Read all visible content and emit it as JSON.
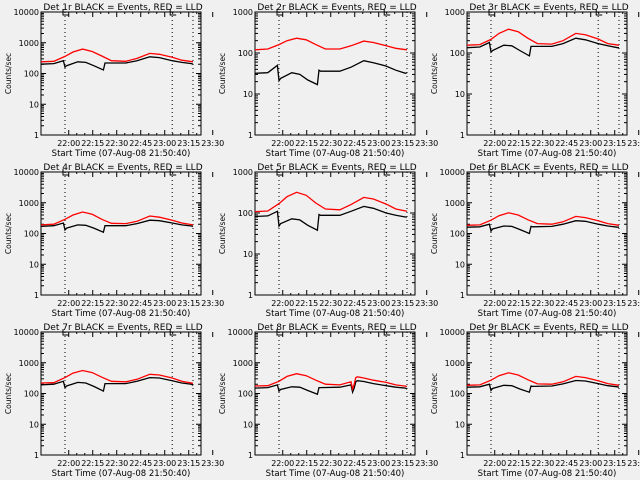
{
  "chart_data": [
    {
      "type": "line",
      "title": "Det 1r BLACK = Events, RED = LLD",
      "xlabel": "Start Time (07-Aug-08 21:50:40)",
      "ylabel": "Counts/sec",
      "yscale": "log",
      "ylim": [
        1,
        10000
      ],
      "ytick_labels": [
        "1",
        "10",
        "100",
        "1000",
        "10000"
      ],
      "xtick_labels": [
        "22:00",
        "22:15",
        "22:30",
        "22:45",
        "23:00",
        "23:15",
        "23:30"
      ],
      "xlim_minutes": [
        -8,
        92
      ],
      "vlines_minutes": [
        7,
        74,
        87
      ],
      "series": [
        {
          "name": "Events",
          "color": "#000000",
          "x": [
            -8,
            0,
            6,
            7,
            8,
            15,
            20,
            25,
            31,
            32,
            33,
            45,
            52,
            60,
            66,
            74,
            80,
            86,
            87
          ],
          "values": [
            200,
            210,
            260,
            160,
            180,
            240,
            230,
            180,
            130,
            220,
            220,
            220,
            260,
            350,
            330,
            260,
            230,
            210,
            200
          ]
        },
        {
          "name": "LLD",
          "color": "#ff0000",
          "x": [
            -8,
            0,
            7,
            12,
            18,
            24,
            30,
            36,
            45,
            52,
            60,
            66,
            74,
            80,
            87
          ],
          "values": [
            240,
            250,
            360,
            500,
            620,
            520,
            370,
            260,
            250,
            310,
            450,
            420,
            340,
            270,
            240
          ]
        }
      ]
    },
    {
      "type": "line",
      "title": "Det 2r BLACK = Events, RED = LLD",
      "xlabel": "Start Time (07-Aug-08 21:50:40)",
      "ylabel": "Counts/sec",
      "yscale": "log",
      "ylim": [
        1,
        1000
      ],
      "ytick_labels": [
        "1",
        "10",
        "100",
        "1000"
      ],
      "xtick_labels": [
        "22:00",
        "22:15",
        "22:30",
        "22:45",
        "23:00",
        "23:15",
        "23:30"
      ],
      "xlim_minutes": [
        -8,
        92
      ],
      "vlines_minutes": [
        7,
        74,
        87
      ],
      "series": [
        {
          "name": "Events",
          "color": "#000000",
          "x": [
            -8,
            0,
            6,
            7,
            8,
            15,
            20,
            25,
            31,
            32,
            33,
            45,
            52,
            60,
            66,
            74,
            80,
            86,
            87
          ],
          "values": [
            32,
            33,
            50,
            21,
            24,
            33,
            30,
            22,
            17,
            38,
            36,
            36,
            45,
            65,
            58,
            48,
            38,
            32,
            33
          ]
        },
        {
          "name": "LLD",
          "color": "#ff0000",
          "x": [
            -8,
            0,
            7,
            12,
            18,
            24,
            30,
            36,
            45,
            52,
            60,
            66,
            74,
            80,
            87
          ],
          "values": [
            120,
            125,
            160,
            200,
            230,
            210,
            160,
            125,
            125,
            150,
            195,
            180,
            150,
            130,
            120
          ]
        }
      ]
    },
    {
      "type": "line",
      "title": "Det 3r BLACK = Events, RED = LLD",
      "xlabel": "Start Time (07-Aug-08 21:50:40)",
      "ylabel": "Counts/sec",
      "yscale": "log",
      "ylim": [
        1,
        1000
      ],
      "ytick_labels": [
        "1",
        "10",
        "100",
        "1000"
      ],
      "xtick_labels": [
        "22:00",
        "22:15",
        "22:30",
        "22:45",
        "23:00",
        "23:15",
        "23:30"
      ],
      "xlim_minutes": [
        -8,
        92
      ],
      "vlines_minutes": [
        7,
        74,
        87
      ],
      "series": [
        {
          "name": "Events",
          "color": "#000000",
          "x": [
            -8,
            0,
            6,
            7,
            8,
            15,
            20,
            25,
            31,
            32,
            33,
            45,
            52,
            60,
            66,
            74,
            80,
            86,
            87
          ],
          "values": [
            135,
            140,
            180,
            105,
            115,
            155,
            150,
            115,
            85,
            145,
            145,
            145,
            170,
            230,
            210,
            170,
            150,
            135,
            135
          ]
        },
        {
          "name": "LLD",
          "color": "#ff0000",
          "x": [
            -8,
            0,
            7,
            12,
            18,
            24,
            30,
            36,
            45,
            52,
            60,
            66,
            74,
            80,
            87
          ],
          "values": [
            155,
            160,
            215,
            300,
            380,
            330,
            230,
            170,
            165,
            200,
            300,
            280,
            220,
            170,
            155
          ]
        }
      ]
    },
    {
      "type": "line",
      "title": "Det 4r BLACK = Events, RED = LLD",
      "xlabel": "Start Time (07-Aug-08 21:50:40)",
      "ylabel": "Counts/sec",
      "yscale": "log",
      "ylim": [
        1,
        10000
      ],
      "ytick_labels": [
        "1",
        "10",
        "100",
        "1000",
        "10000"
      ],
      "xtick_labels": [
        "22:00",
        "22:15",
        "22:30",
        "22:45",
        "23:00",
        "23:15",
        "23:30"
      ],
      "xlim_minutes": [
        -8,
        92
      ],
      "vlines_minutes": [
        7,
        74,
        87
      ],
      "series": [
        {
          "name": "Events",
          "color": "#000000",
          "x": [
            -8,
            0,
            6,
            7,
            8,
            15,
            20,
            25,
            31,
            32,
            33,
            45,
            52,
            60,
            66,
            74,
            80,
            86,
            87
          ],
          "values": [
            170,
            180,
            220,
            130,
            150,
            190,
            185,
            150,
            110,
            180,
            180,
            180,
            210,
            270,
            260,
            220,
            190,
            175,
            170
          ]
        },
        {
          "name": "LLD",
          "color": "#ff0000",
          "x": [
            -8,
            0,
            7,
            12,
            18,
            24,
            30,
            36,
            45,
            52,
            60,
            66,
            74,
            80,
            87
          ],
          "values": [
            190,
            200,
            290,
            400,
            500,
            420,
            290,
            215,
            210,
            250,
            370,
            340,
            270,
            220,
            190
          ]
        }
      ]
    },
    {
      "type": "line",
      "title": "Det 5r BLACK = Events, RED = LLD",
      "xlabel": "Start Time (07-Aug-08 21:50:40)",
      "ylabel": "Counts/sec",
      "yscale": "log",
      "ylim": [
        1,
        1000
      ],
      "ytick_labels": [
        "1",
        "10",
        "100",
        "1000"
      ],
      "xtick_labels": [
        "22:00",
        "22:15",
        "22:30",
        "22:45",
        "23:00",
        "23:15",
        "23:30"
      ],
      "xlim_minutes": [
        -8,
        92
      ],
      "vlines_minutes": [
        7,
        74,
        87
      ],
      "series": [
        {
          "name": "Events",
          "color": "#000000",
          "x": [
            -8,
            0,
            6,
            7,
            8,
            15,
            20,
            25,
            31,
            32,
            33,
            45,
            52,
            60,
            66,
            74,
            80,
            86,
            87
          ],
          "values": [
            82,
            85,
            110,
            48,
            55,
            72,
            68,
            50,
            38,
            92,
            88,
            88,
            110,
            145,
            130,
            100,
            88,
            80,
            80
          ]
        },
        {
          "name": "LLD",
          "color": "#ff0000",
          "x": [
            -8,
            0,
            7,
            12,
            18,
            24,
            30,
            36,
            45,
            52,
            60,
            66,
            74,
            80,
            87
          ],
          "values": [
            108,
            112,
            170,
            250,
            320,
            270,
            175,
            125,
            120,
            160,
            240,
            220,
            165,
            125,
            110
          ]
        }
      ]
    },
    {
      "type": "line",
      "title": "Det 6r BLACK = Events, RED = LLD",
      "xlabel": "Start Time (07-Aug-08 21:50:40)",
      "ylabel": "Counts/sec",
      "yscale": "log",
      "ylim": [
        1,
        10000
      ],
      "ytick_labels": [
        "1",
        "10",
        "100",
        "1000",
        "10000"
      ],
      "xtick_labels": [
        "22:00",
        "22:15",
        "22:30",
        "22:45",
        "23:00",
        "23:15",
        "23:30"
      ],
      "xlim_minutes": [
        -8,
        92
      ],
      "vlines_minutes": [
        7,
        74,
        87
      ],
      "series": [
        {
          "name": "Events",
          "color": "#000000",
          "x": [
            -8,
            0,
            6,
            7,
            8,
            15,
            20,
            25,
            31,
            32,
            33,
            45,
            52,
            60,
            66,
            74,
            80,
            86,
            87
          ],
          "values": [
            160,
            165,
            200,
            120,
            140,
            175,
            170,
            135,
            100,
            170,
            165,
            170,
            200,
            260,
            250,
            200,
            175,
            160,
            160
          ]
        },
        {
          "name": "LLD",
          "color": "#ff0000",
          "x": [
            -8,
            0,
            7,
            12,
            18,
            24,
            30,
            36,
            45,
            52,
            60,
            66,
            74,
            80,
            87
          ],
          "values": [
            185,
            190,
            270,
            380,
            470,
            400,
            280,
            210,
            200,
            240,
            360,
            330,
            260,
            210,
            185
          ]
        }
      ]
    },
    {
      "type": "line",
      "title": "Det 7r BLACK = Events, RED = LLD",
      "xlabel": "Start Time (07-Aug-08 21:50:40)",
      "ylabel": "Counts/sec",
      "yscale": "log",
      "ylim": [
        1,
        10000
      ],
      "ytick_labels": [
        "1",
        "10",
        "100",
        "1000",
        "10000"
      ],
      "xtick_labels": [
        "22:00",
        "22:15",
        "22:30",
        "22:45",
        "23:00",
        "23:15",
        "23:30"
      ],
      "xlim_minutes": [
        -8,
        92
      ],
      "vlines_minutes": [
        7,
        74,
        87
      ],
      "series": [
        {
          "name": "Events",
          "color": "#000000",
          "x": [
            -8,
            0,
            6,
            7,
            8,
            15,
            20,
            25,
            31,
            32,
            33,
            45,
            52,
            60,
            66,
            74,
            80,
            86,
            87
          ],
          "values": [
            190,
            200,
            250,
            155,
            175,
            230,
            220,
            170,
            120,
            210,
            210,
            210,
            250,
            330,
            320,
            260,
            220,
            200,
            185
          ]
        },
        {
          "name": "LLD",
          "color": "#ff0000",
          "x": [
            -8,
            0,
            7,
            12,
            18,
            24,
            30,
            36,
            45,
            52,
            60,
            66,
            74,
            80,
            87
          ],
          "values": [
            220,
            225,
            330,
            460,
            560,
            480,
            340,
            250,
            240,
            290,
            420,
            400,
            320,
            250,
            215
          ]
        }
      ]
    },
    {
      "type": "line",
      "title": "Det 8r BLACK = Events, RED = LLD",
      "xlabel": "Start Time (07-Aug-08 21:50:40)",
      "ylabel": "Counts/sec",
      "yscale": "log",
      "ylim": [
        1,
        10000
      ],
      "ytick_labels": [
        "1",
        "10",
        "100",
        "1000",
        "10000"
      ],
      "xtick_labels": [
        "22:00",
        "22:15",
        "22:30",
        "22:45",
        "23:00",
        "23:15",
        "23:30"
      ],
      "xlim_minutes": [
        -8,
        92
      ],
      "vlines_minutes": [
        7,
        74,
        87
      ],
      "series": [
        {
          "name": "Events",
          "color": "#000000",
          "x": [
            -8,
            0,
            6,
            7,
            8,
            15,
            20,
            25,
            31,
            32,
            33,
            45,
            52,
            53,
            54,
            55,
            56,
            60,
            66,
            74,
            80,
            86,
            87
          ],
          "values": [
            150,
            155,
            190,
            120,
            135,
            165,
            160,
            125,
            95,
            155,
            155,
            160,
            190,
            110,
            150,
            240,
            260,
            245,
            210,
            180,
            160,
            150,
            140
          ]
        },
        {
          "name": "LLD",
          "color": "#ff0000",
          "x": [
            -8,
            0,
            7,
            12,
            18,
            24,
            30,
            36,
            45,
            52,
            53,
            54,
            55,
            56,
            60,
            66,
            74,
            80,
            87
          ],
          "values": [
            175,
            180,
            250,
            360,
            440,
            380,
            270,
            200,
            190,
            240,
            140,
            200,
            330,
            350,
            320,
            270,
            230,
            190,
            170
          ]
        }
      ]
    },
    {
      "type": "line",
      "title": "Det 9r BLACK = Events, RED = LLD",
      "xlabel": "Start Time (07-Aug-08 21:50:40)",
      "ylabel": "Counts/sec",
      "yscale": "log",
      "ylim": [
        1,
        10000
      ],
      "ytick_labels": [
        "1",
        "10",
        "100",
        "1000",
        "10000"
      ],
      "xtick_labels": [
        "22:00",
        "22:15",
        "22:30",
        "22:45",
        "23:00",
        "23:15",
        "23:30"
      ],
      "xlim_minutes": [
        -8,
        92
      ],
      "vlines_minutes": [
        7,
        74,
        87
      ],
      "series": [
        {
          "name": "Events",
          "color": "#000000",
          "x": [
            -8,
            0,
            6,
            7,
            8,
            15,
            20,
            25,
            31,
            32,
            33,
            45,
            52,
            60,
            66,
            74,
            80,
            86,
            87
          ],
          "values": [
            160,
            165,
            200,
            125,
            145,
            185,
            180,
            140,
            110,
            175,
            170,
            175,
            205,
            265,
            255,
            210,
            180,
            165,
            160
          ]
        },
        {
          "name": "LLD",
          "color": "#ff0000",
          "x": [
            -8,
            0,
            7,
            12,
            18,
            24,
            30,
            36,
            45,
            52,
            60,
            66,
            74,
            80,
            87
          ],
          "values": [
            185,
            190,
            270,
            380,
            470,
            400,
            280,
            205,
            200,
            240,
            360,
            330,
            260,
            210,
            185
          ]
        }
      ]
    }
  ]
}
